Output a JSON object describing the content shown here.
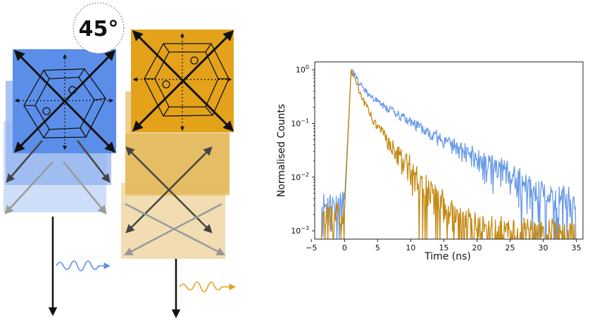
{
  "illustration": {
    "angle_label": "45°",
    "colors": {
      "blue_square": "#5b8ee8",
      "blue_pale": "#c7d8f7",
      "gold_square": "#e3a21a",
      "gold_pale": "#f0d9a8",
      "arrow_dark": "#111111",
      "arrow_grey": "#9a9a9a",
      "wave_blue": "#5b8ee8",
      "wave_gold": "#e3a21a"
    }
  },
  "chart_data": {
    "type": "line",
    "xlabel": "Time (ns)",
    "ylabel": "Normalised Counts",
    "xlim": [
      -4.5,
      36
    ],
    "ylim": [
      0.0007,
      1.4
    ],
    "yscale": "log",
    "xticks": [
      -5,
      0,
      5,
      10,
      15,
      20,
      25,
      30,
      35
    ],
    "xtick_labels": [
      "−5",
      "0",
      "5",
      "10",
      "15",
      "20",
      "25",
      "30",
      "35"
    ],
    "yticks": [
      0.001,
      0.01,
      0.1,
      1
    ],
    "ytick_labels": [
      {
        "base": "10",
        "exp": "−3"
      },
      {
        "base": "10",
        "exp": "−2"
      },
      {
        "base": "10",
        "exp": "−1"
      },
      {
        "base": "10",
        "exp": "0"
      }
    ],
    "grid": false,
    "series": [
      {
        "color": "#6a9be8",
        "peak_time": 1.0,
        "rise_start": 0.0,
        "decay_components": [
          {
            "amplitude": 0.55,
            "tau": 1.2
          },
          {
            "amplitude": 0.45,
            "tau": 6.2
          }
        ],
        "background": 0.0018,
        "time_range": [
          -3.5,
          35
        ]
      },
      {
        "color": "#c48a14",
        "peak_time": 1.0,
        "rise_start": 0.0,
        "decay_components": [
          {
            "amplitude": 0.7,
            "tau": 1.0
          },
          {
            "amplitude": 0.3,
            "tau": 2.9
          }
        ],
        "background": 0.0011,
        "time_range": [
          -3.5,
          35
        ]
      }
    ]
  }
}
